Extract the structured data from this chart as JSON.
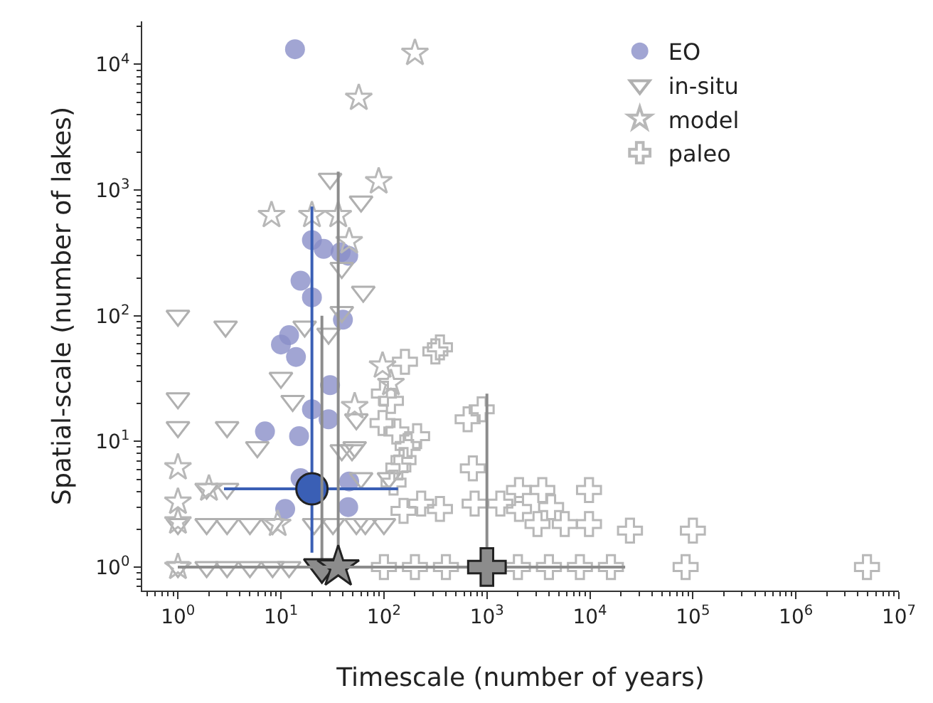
{
  "chart_data": {
    "type": "scatter",
    "xlabel": "Timescale (number of years)",
    "ylabel": "Spatial-scale (number of lakes)",
    "log": "xy",
    "legend": "top right",
    "xlim": [
      0.45,
      10000000
    ],
    "ylim": [
      0.65,
      22000
    ],
    "xticks": [
      {
        "value": 1,
        "label": "10$^{0}$"
      },
      {
        "value": 10,
        "label": "10$^{1}$"
      },
      {
        "value": 100,
        "label": "10$^{2}$"
      },
      {
        "value": 1000,
        "label": "10$^{3}$"
      },
      {
        "value": 10000,
        "label": "10$^{4}$"
      },
      {
        "value": 100000,
        "label": "10$^{5}$"
      },
      {
        "value": 1000000,
        "label": "10$^{6}$"
      },
      {
        "value": 10000000,
        "label": "10$^{7}$"
      }
    ],
    "yticks": [
      {
        "value": 1,
        "label": "10$^{0}$"
      },
      {
        "value": 10,
        "label": "10$^{1}$"
      },
      {
        "value": 100,
        "label": "10$^{2}$"
      },
      {
        "value": 1000,
        "label": "10$^{3}$"
      },
      {
        "value": 10000,
        "label": "10$^{4}$"
      }
    ],
    "series": [
      {
        "name": "EO",
        "color": "#8a8fc8",
        "marker": "circle",
        "x": [
          13.7,
          20,
          26,
          38,
          45,
          15.5,
          20,
          40,
          12,
          10,
          14,
          30,
          20,
          29,
          7,
          15,
          15.5,
          46,
          11,
          45
        ],
        "values": [
          13200,
          400,
          340,
          320,
          300,
          190,
          140,
          93,
          70,
          59,
          47,
          28,
          18,
          15,
          12,
          11,
          5.1,
          4.8,
          2.9,
          3.0
        ]
      },
      {
        "name": "in-situ",
        "color": "#b0b0b0",
        "marker": "triangle",
        "x": [
          1,
          2.9,
          30,
          60,
          63,
          39,
          39,
          17,
          29,
          1,
          1,
          3,
          10,
          13,
          54,
          5.9,
          52,
          1.9,
          3,
          1,
          1.9,
          3,
          5,
          8.3,
          21,
          32,
          54,
          1,
          1.9,
          3,
          5,
          8.3,
          12,
          39,
          49,
          60,
          112,
          66,
          100
        ],
        "values": [
          100,
          82,
          1230,
          810,
          155,
          240,
          107,
          82,
          72,
          22,
          13,
          13,
          32,
          21,
          15,
          9,
          9,
          4.2,
          4.2,
          2.2,
          2.2,
          2.2,
          2.2,
          2.2,
          2.2,
          2.2,
          2.2,
          1,
          1,
          1,
          1,
          1,
          1,
          8.5,
          8.5,
          5.1,
          5.1,
          2.2,
          2.2
        ]
      },
      {
        "name": "model",
        "color": "#b8b8b8",
        "marker": "star",
        "x": [
          200,
          57,
          89,
          8.1,
          20,
          36,
          46,
          1,
          1,
          2,
          9.3,
          52,
          97,
          117,
          1,
          1
        ],
        "values": [
          12300,
          5400,
          1170,
          630,
          630,
          630,
          390,
          6.2,
          3.3,
          4.2,
          2.2,
          19,
          40,
          29,
          2.3,
          1
        ]
      },
      {
        "name": "paleo",
        "color": "#b8b8b8",
        "marker": "cross",
        "x": [
          350,
          316,
          160,
          100,
          117,
          97,
          132,
          170,
          210,
          155,
          138,
          650,
          890,
          730,
          124,
          230,
          350,
          155,
          760,
          1350,
          2050,
          3450,
          9800,
          2050,
          4200,
          3100,
          5700,
          9800,
          24500,
          100000,
          85000,
          4900000,
          100,
          200,
          400,
          2000,
          4000,
          8000,
          16000
        ],
        "values": [
          56,
          52,
          43,
          24,
          21,
          14,
          12,
          9.2,
          11,
          7.1,
          6.2,
          15,
          18,
          6.1,
          4.7,
          3.2,
          2.9,
          2.8,
          3.2,
          3.2,
          4.1,
          4.1,
          4.1,
          2.9,
          3.0,
          2.2,
          2.2,
          2.2,
          1.95,
          1.95,
          1,
          1,
          1,
          1,
          1,
          1,
          1,
          1,
          1
        ]
      },
      {
        "color": "#3a5fb5",
        "marker": "circle",
        "x": [
          20
        ],
        "values": [
          4.2
        ],
        "errors": [
          [
            1.3,
            740
          ]
        ],
        "xerrors": [
          [
            2.8,
            137
          ]
        ]
      },
      {
        "color": "#8c8c8c",
        "marker": "triangle",
        "x": [
          25
        ],
        "values": [
          1
        ],
        "errors": [
          [
            1,
            100
          ]
        ],
        "xerrors": [
          [
            1,
            137
          ]
        ]
      },
      {
        "color": "#8c8c8c",
        "marker": "star",
        "x": [
          36
        ],
        "values": [
          1
        ],
        "errors": [
          [
            1,
            1400
          ]
        ],
        "xerrors": [
          [
            1,
            100
          ]
        ]
      },
      {
        "color": "#8c8c8c",
        "marker": "cross",
        "x": [
          1000
        ],
        "values": [
          1
        ],
        "errors": [
          [
            1,
            24
          ]
        ],
        "xerrors": [
          [
            1,
            22000
          ]
        ]
      }
    ]
  }
}
